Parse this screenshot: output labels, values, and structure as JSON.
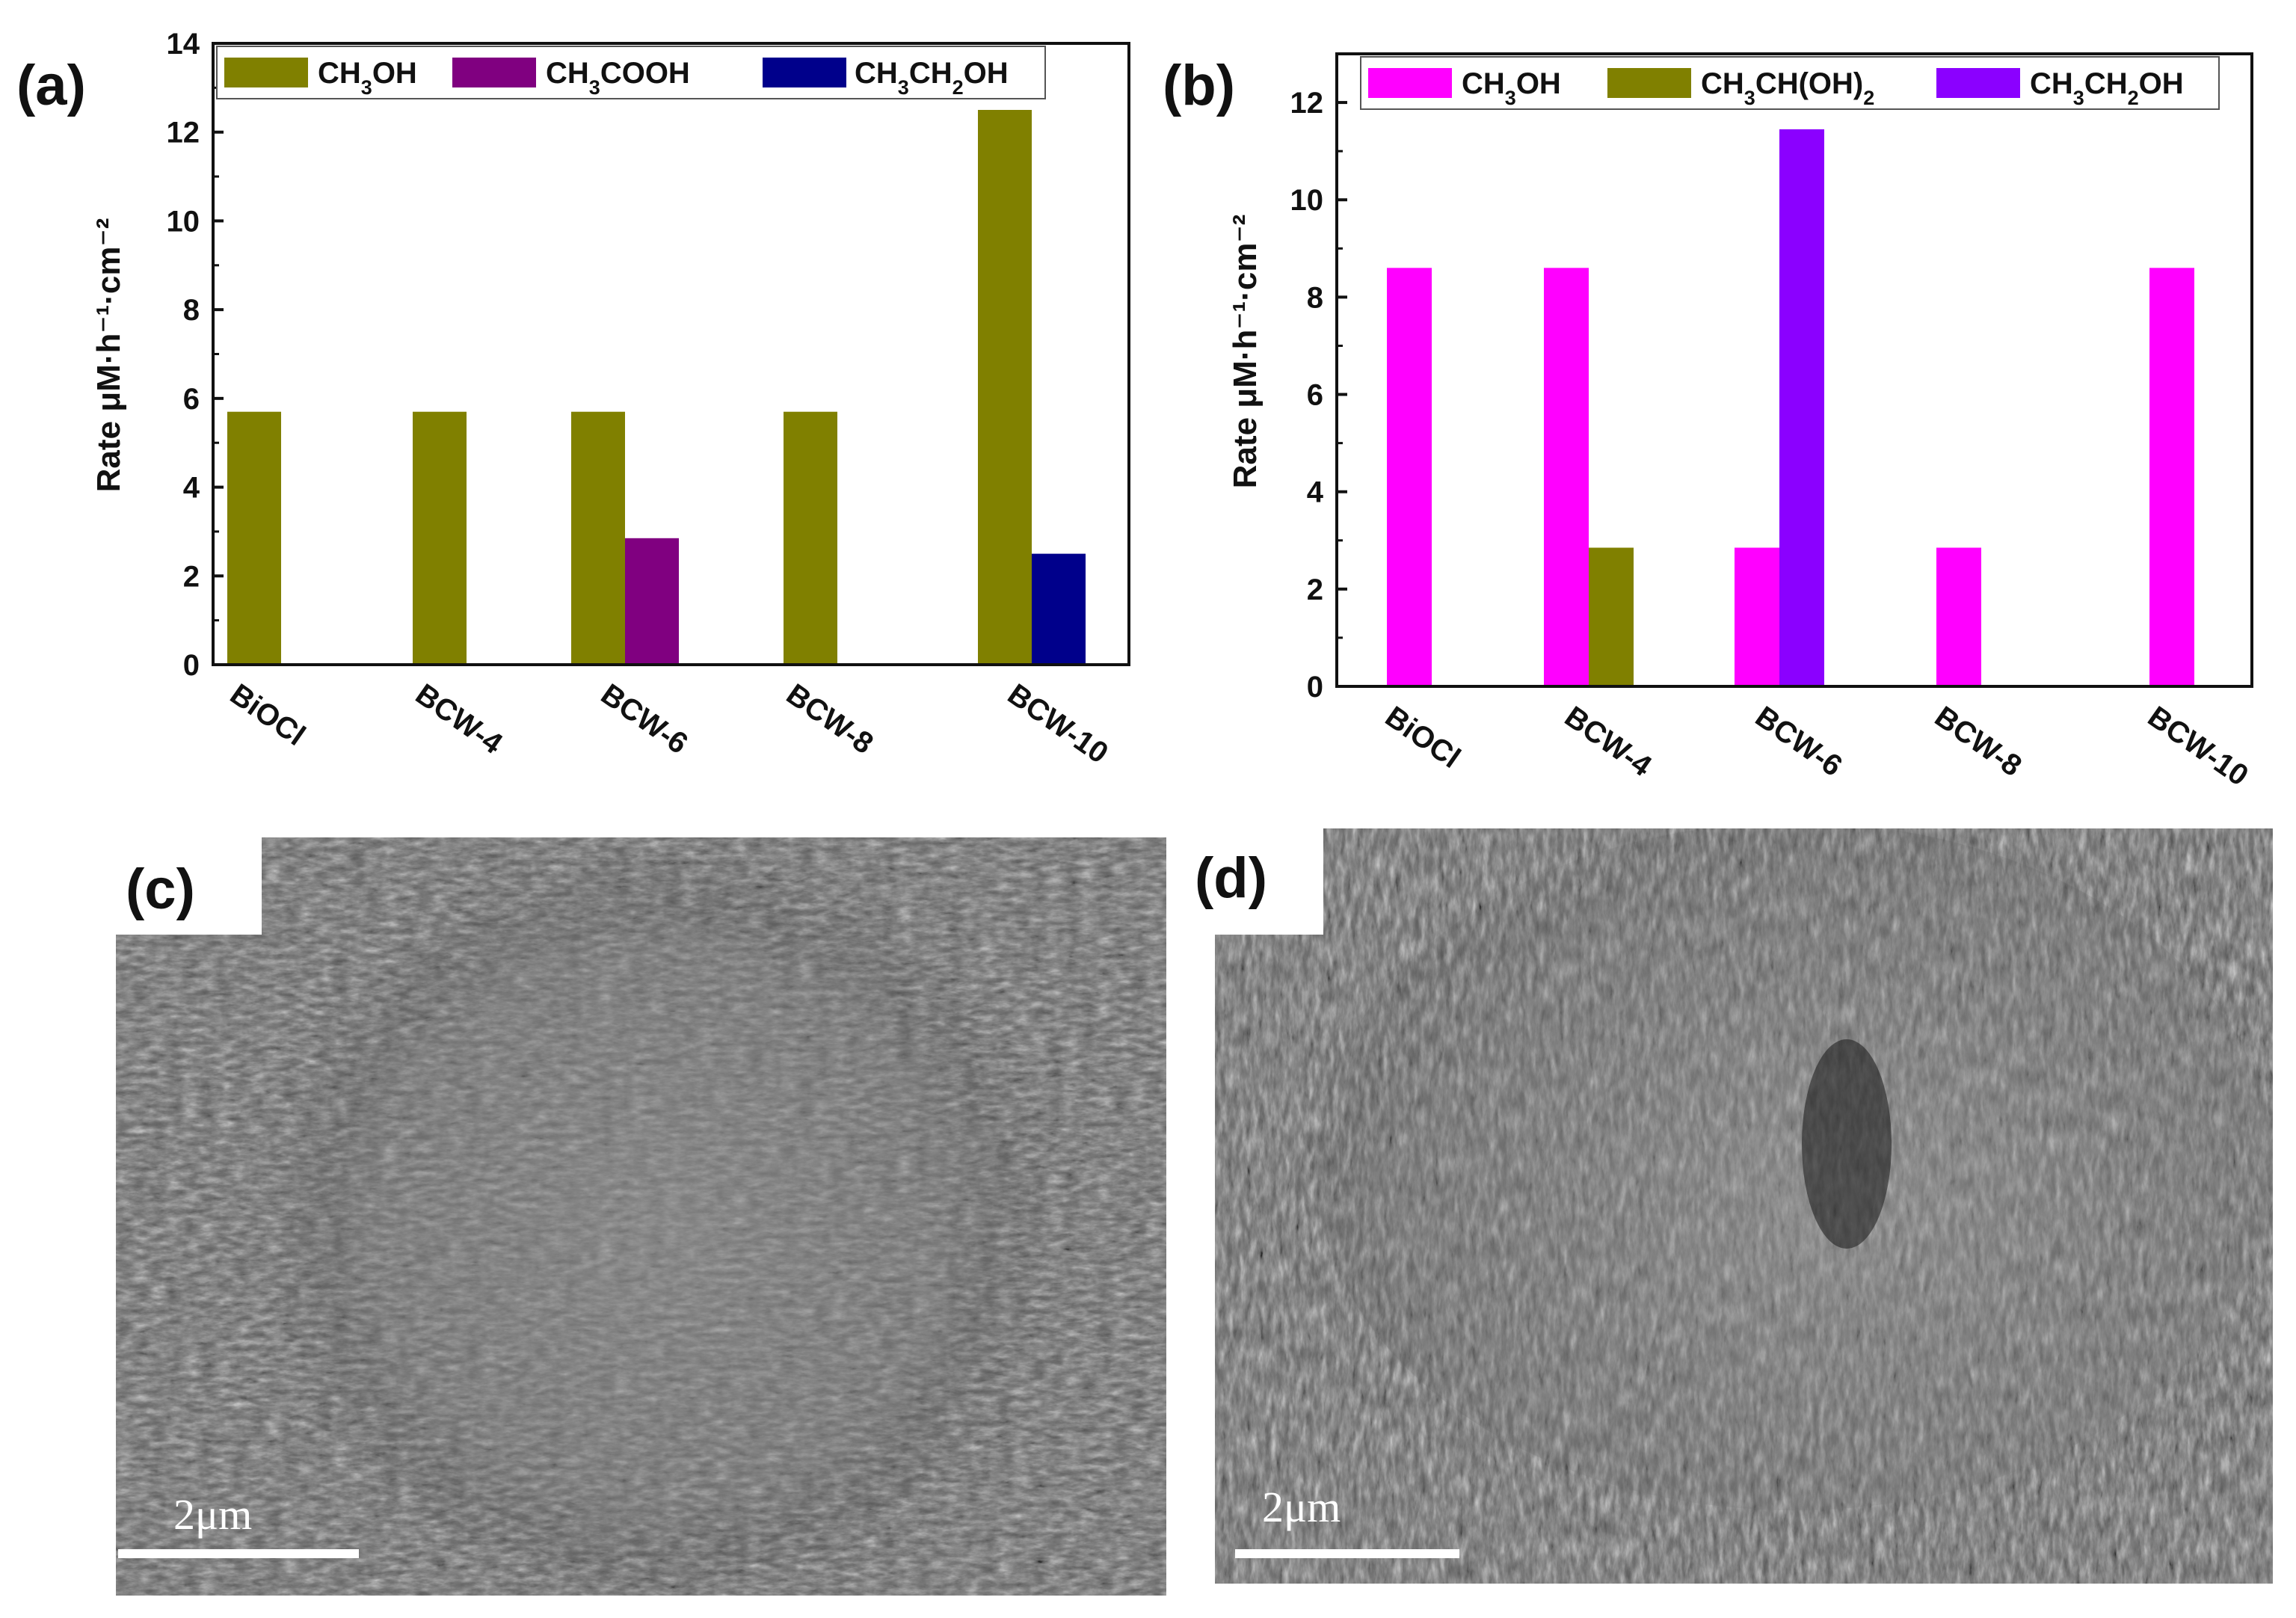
{
  "panels": {
    "a": "(a)",
    "b": "(b)",
    "c": "(c)",
    "d": "(d)"
  },
  "chart_data": [
    {
      "type": "bar",
      "panel": "a",
      "categories": [
        "BiOCl",
        "BCW-4",
        "BCW-6",
        "BCW-8",
        "BCW-10"
      ],
      "series": [
        {
          "name": "CH3OH",
          "values": [
            5.7,
            5.7,
            5.7,
            5.7,
            12.5
          ],
          "color": "#808000"
        },
        {
          "name": "CH3COOH",
          "values": [
            0,
            0,
            2.85,
            0,
            0
          ],
          "color": "#800080"
        },
        {
          "name": "CH3CH2OH",
          "values": [
            0,
            0,
            0,
            0,
            2.5
          ],
          "color": "#00008b"
        }
      ],
      "ylabel": "Rate μM·h⁻¹·cm⁻²",
      "ylim": [
        0,
        14
      ],
      "yticks": [
        "0",
        "2",
        "4",
        "6",
        "8",
        "10",
        "12",
        "14"
      ],
      "legend": "top",
      "grid": false
    },
    {
      "type": "bar",
      "panel": "b",
      "categories": [
        "BiOCl",
        "BCW-4",
        "BCW-6",
        "BCW-8",
        "BCW-10"
      ],
      "series": [
        {
          "name": "CH3OH",
          "values": [
            8.6,
            8.6,
            2.85,
            2.85,
            8.6
          ],
          "color": "#ff00ff"
        },
        {
          "name": "CH3CH(OH)2",
          "values": [
            0,
            2.85,
            0,
            0,
            0
          ],
          "color": "#808000"
        },
        {
          "name": "CH3CH2OH",
          "values": [
            0,
            0,
            11.45,
            0,
            0
          ],
          "color": "#8b00ff"
        }
      ],
      "ylabel": "Rate μM·h⁻¹·cm⁻²",
      "ylim": [
        0,
        13
      ],
      "yticks": [
        "0",
        "2",
        "4",
        "6",
        "8",
        "10",
        "12"
      ],
      "legend": "top",
      "grid": false
    }
  ],
  "sem": {
    "c_scale": "2μm",
    "d_scale": "2μm"
  }
}
